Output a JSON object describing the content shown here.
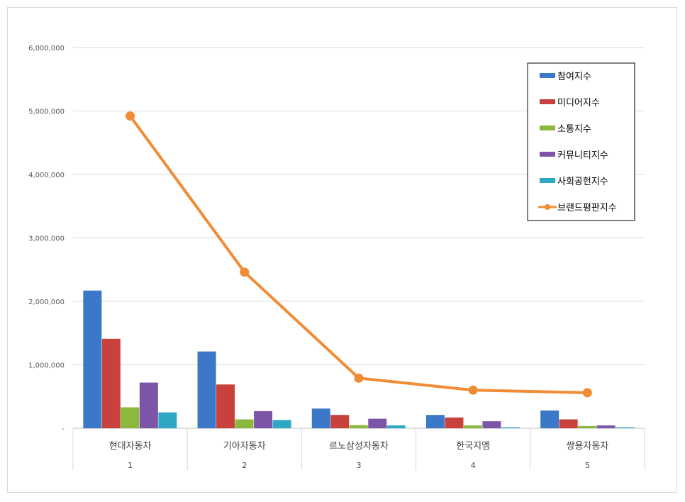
{
  "chart_data": {
    "type": "bar",
    "categories": [
      "현대자동차",
      "기아자동차",
      "르노삼성자동차",
      "한국지엠",
      "쌍용자동차"
    ],
    "category_index": [
      "1",
      "2",
      "3",
      "4",
      "5"
    ],
    "ylim": [
      0,
      6000000
    ],
    "yticks": [
      0,
      1000000,
      2000000,
      3000000,
      4000000,
      5000000,
      6000000
    ],
    "ytick_labels": [
      "-",
      "1,000,000",
      "2,000,000",
      "3,000,000",
      "4,000,000",
      "5,000,000",
      "6,000,000"
    ],
    "grid": true,
    "legend_position": "top-right",
    "series": [
      {
        "name": "참여지수",
        "type": "bar",
        "color": "#3b78c8",
        "values": [
          2170000,
          1210000,
          310000,
          210000,
          280000
        ]
      },
      {
        "name": "미디어지수",
        "type": "bar",
        "color": "#c9413c",
        "values": [
          1410000,
          690000,
          210000,
          170000,
          140000
        ]
      },
      {
        "name": "소통지수",
        "type": "bar",
        "color": "#8db83e",
        "values": [
          330000,
          140000,
          50000,
          45000,
          35000
        ]
      },
      {
        "name": "커뮤니티지수",
        "type": "bar",
        "color": "#7d55a8",
        "values": [
          720000,
          270000,
          150000,
          110000,
          45000
        ]
      },
      {
        "name": "사회공헌지수",
        "type": "bar",
        "color": "#2fa7c4",
        "values": [
          250000,
          130000,
          45000,
          15000,
          15000
        ]
      },
      {
        "name": "브랜드평판지수",
        "type": "line",
        "color": "#f08c34",
        "values": [
          4920000,
          2460000,
          790000,
          600000,
          560000
        ]
      }
    ]
  }
}
